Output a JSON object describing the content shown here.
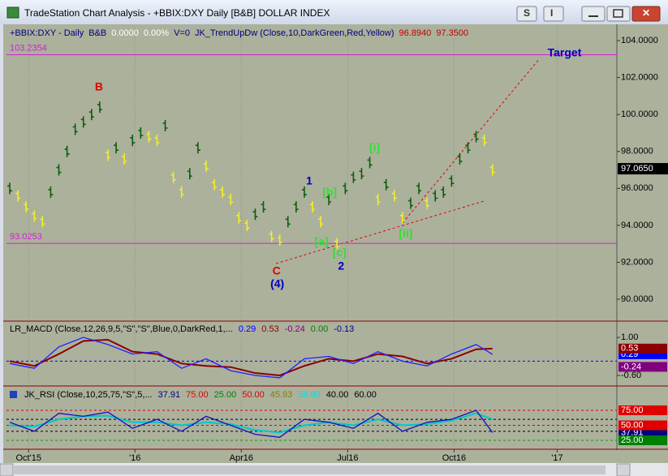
{
  "window": {
    "title": "TradeStation Chart Analysis - +BBIX:DXY Daily [B&B] DOLLAR INDEX",
    "buttons": [
      "S",
      "I"
    ]
  },
  "chart_data": [
    {
      "type": "ohlc",
      "header": [
        {
          "text": "+BBIX:DXY - Daily",
          "color": "#000080"
        },
        {
          "text": "B&B",
          "color": "#000080"
        },
        {
          "text": "0.0000",
          "color": "#ffffff"
        },
        {
          "text": "0.00%",
          "color": "#ffffff"
        },
        {
          "text": "V=0",
          "color": "#000080"
        },
        {
          "text": "JK_TrendUpDw (Close,10,DarkGreen,Red,Yellow)",
          "color": "#000080"
        },
        {
          "text": "96.8940",
          "color": "#c00000"
        },
        {
          "text": "97.3500",
          "color": "#c00000"
        }
      ],
      "x": [
        0,
        1,
        2,
        3,
        4,
        5,
        6,
        7,
        8,
        9,
        10,
        11,
        12,
        13,
        14,
        15,
        16,
        17,
        18,
        19,
        20,
        21,
        22,
        23,
        24,
        25,
        26,
        27,
        28,
        29,
        30,
        31,
        32,
        33,
        34,
        35,
        36,
        37,
        38,
        39,
        40,
        41,
        42,
        43,
        44,
        45,
        46,
        47,
        48,
        49,
        50,
        51,
        52,
        53,
        54,
        55,
        56,
        57,
        58,
        59
      ],
      "values": [
        96.0,
        95.6,
        95.0,
        94.5,
        94.2,
        95.8,
        97.0,
        98.0,
        99.2,
        99.6,
        100.0,
        100.4,
        97.8,
        98.2,
        97.6,
        98.6,
        99.0,
        98.8,
        98.6,
        99.4,
        96.6,
        95.8,
        96.8,
        98.2,
        97.2,
        96.2,
        95.8,
        95.4,
        94.4,
        94.0,
        94.6,
        95.0,
        93.4,
        93.2,
        94.2,
        95.0,
        95.8,
        95.0,
        94.2,
        95.4,
        93.0,
        96.0,
        96.6,
        96.8,
        97.4,
        95.4,
        96.2,
        95.6,
        94.4,
        95.2,
        96.0,
        95.2,
        95.6,
        95.8,
        96.4,
        97.6,
        98.2,
        98.8,
        98.6,
        97.0
      ],
      "colors": {
        "up": "#0b5e0b",
        "down": "#f2ee2a"
      },
      "xlim": [
        -0.4,
        74.2
      ],
      "xticks": [
        {
          "value": 2.3,
          "label": "Oct'15"
        },
        {
          "value": 15.3,
          "label": "'16"
        },
        {
          "value": 28.3,
          "label": "Apr16"
        },
        {
          "value": 41.3,
          "label": "Jul16"
        },
        {
          "value": 54.3,
          "label": "Oct16"
        },
        {
          "value": 66.9,
          "label": "'17"
        }
      ],
      "ylim": [
        88.86,
        104.75
      ],
      "yticks": [
        {
          "value": 90,
          "label": "90.0000"
        },
        {
          "value": 92,
          "label": "92.0000"
        },
        {
          "value": 94,
          "label": "94.0000"
        },
        {
          "value": 96,
          "label": "96.0000"
        },
        {
          "value": 98,
          "label": "98.0000"
        },
        {
          "value": 100,
          "label": "100.0000"
        },
        {
          "value": 102,
          "label": "102.0000"
        },
        {
          "value": 104,
          "label": "104.0000"
        }
      ],
      "grid": true,
      "last": {
        "value": 97.065,
        "label": "97.0650"
      },
      "hlines": [
        {
          "value": 103.2354,
          "label": "103.2354",
          "color": "#d020d0"
        },
        {
          "value": 93.0253,
          "label": "93.0253",
          "color": "#d020d0"
        }
      ],
      "annotations": [
        {
          "text": "B",
          "x": 10.9,
          "y": 101.46,
          "color": "#e00000"
        },
        {
          "text": "C",
          "x": 32.6,
          "y": 91.5,
          "color": "#e00000"
        },
        {
          "text": "(4)",
          "x": 32.7,
          "y": 90.8,
          "color": "#0000c0"
        },
        {
          "text": "1",
          "x": 36.6,
          "y": 96.37,
          "color": "#0000c0"
        },
        {
          "text": "2",
          "x": 40.5,
          "y": 91.76,
          "color": "#0000c0"
        },
        {
          "text": "[a]",
          "x": 38.1,
          "y": 93.08,
          "color": "#30e030"
        },
        {
          "text": "[b]",
          "x": 39.1,
          "y": 95.75,
          "color": "#30e030"
        },
        {
          "text": "[c]",
          "x": 40.3,
          "y": 92.5,
          "color": "#30e030"
        },
        {
          "text": "[i]",
          "x": 44.6,
          "y": 98.17,
          "color": "#30e030"
        },
        {
          "text": "[ii]",
          "x": 48.4,
          "y": 93.52,
          "color": "#30e030"
        },
        {
          "text": "Target",
          "x": 67.8,
          "y": 103.3,
          "color": "#0000c0"
        }
      ]
    },
    {
      "type": "line",
      "label": "LR_MACD (Close,12,26,9,5,\"S\",\"S\",Blue,0,DarkRed,1,...",
      "readouts": [
        {
          "value": 0.29,
          "label": "0.29",
          "color": "#0000ff",
          "flag": true
        },
        {
          "value": 0.53,
          "label": "0.53",
          "color": "#8b0000",
          "flag": true
        },
        {
          "value": -0.24,
          "label": "-0.24",
          "color": "#800080",
          "flag": true
        },
        {
          "value": 0,
          "label": "0.00",
          "color": "#008000",
          "flag": false
        },
        {
          "value": -0.13,
          "label": "-0.13",
          "color": "#000080",
          "flag": false
        }
      ],
      "x": [
        0,
        3,
        6,
        9,
        12,
        15,
        18,
        21,
        24,
        27,
        30,
        33,
        36,
        39,
        42,
        45,
        48,
        51,
        54,
        57,
        59
      ],
      "series": [
        {
          "color": "#8b0000",
          "values": [
            0.0,
            -0.2,
            0.3,
            0.85,
            0.9,
            0.4,
            0.3,
            -0.1,
            -0.2,
            -0.25,
            -0.5,
            -0.6,
            -0.2,
            0.1,
            0.0,
            0.3,
            0.2,
            -0.1,
            0.1,
            0.5,
            0.53
          ]
        },
        {
          "color": "#2020ff",
          "values": [
            -0.1,
            -0.3,
            0.6,
            1.0,
            0.7,
            0.3,
            0.4,
            -0.3,
            0.1,
            -0.4,
            -0.6,
            -0.7,
            0.1,
            0.2,
            -0.1,
            0.4,
            0.0,
            -0.2,
            0.3,
            0.7,
            0.29
          ]
        }
      ],
      "xlim": [
        -0.4,
        74.2
      ],
      "ylim": [
        -1.01,
        1.65
      ],
      "yticks": [
        {
          "value": 1,
          "label": "1.00"
        },
        {
          "value": -0.6,
          "label": "-0.60"
        }
      ],
      "hlines": [
        {
          "value": 0,
          "color": "#0000ff"
        }
      ]
    },
    {
      "type": "line",
      "label": "JK_RSI (Close,10,25,75,\"S\",5,...",
      "readouts": [
        {
          "value": 37.91,
          "label": "37.91",
          "color": "#000080",
          "flag": true
        },
        {
          "value": 75,
          "label": "75.00",
          "color": "#e00000",
          "flag": true
        },
        {
          "value": 25,
          "label": "25.00",
          "color": "#008000",
          "flag": true
        },
        {
          "value": 50,
          "label": "50.00",
          "color": "#e00000",
          "flag": true
        },
        {
          "value": 45.93,
          "label": "45.93",
          "color": "#808000",
          "flag": false
        },
        {
          "value": 59.6,
          "label": "59.60",
          "color": "#00e0e0",
          "flag": false
        },
        {
          "value": 40,
          "label": "40.00",
          "color": "#000000",
          "flag": false
        },
        {
          "value": 60,
          "label": "60.00",
          "color": "#000000",
          "flag": false
        }
      ],
      "x": [
        0,
        3,
        6,
        9,
        12,
        15,
        18,
        21,
        24,
        27,
        30,
        33,
        36,
        39,
        42,
        45,
        48,
        51,
        54,
        57,
        59
      ],
      "series": [
        {
          "color": "#00c8c8",
          "values": [
            50,
            48,
            60,
            65,
            66,
            55,
            55,
            50,
            55,
            52,
            42,
            38,
            50,
            55,
            50,
            60,
            50,
            52,
            58,
            70,
            60
          ]
        },
        {
          "color": "#1010c0",
          "values": [
            55,
            40,
            70,
            65,
            72,
            45,
            60,
            40,
            65,
            50,
            35,
            30,
            60,
            55,
            45,
            70,
            40,
            55,
            60,
            75,
            37.91
          ]
        }
      ],
      "xlim": [
        -0.4,
        74.2
      ],
      "ylim": [
        11.5,
        112.8
      ],
      "hlines": [
        {
          "value": 75,
          "color": "#e00000"
        },
        {
          "value": 60,
          "color": "#000000"
        },
        {
          "value": 50,
          "color": "#e00000"
        },
        {
          "value": 40,
          "color": "#000000"
        },
        {
          "value": 25,
          "color": "#00a000"
        }
      ]
    }
  ]
}
